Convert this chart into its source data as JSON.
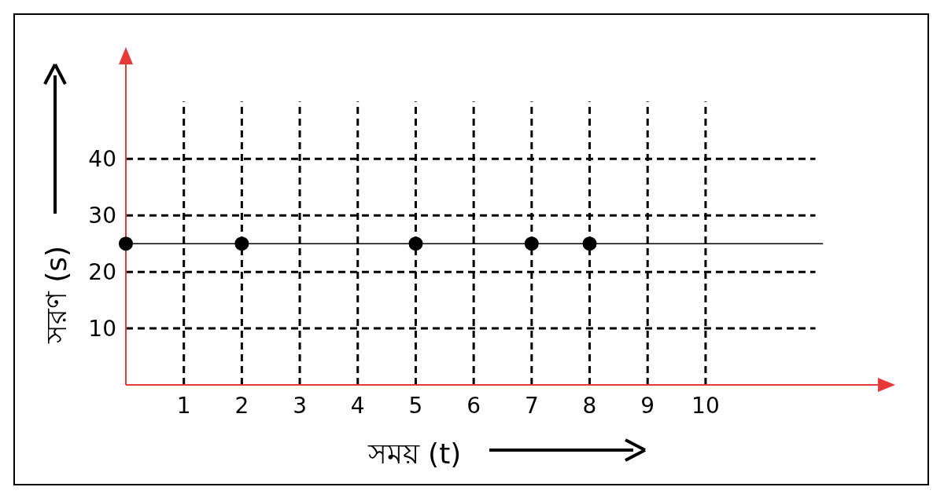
{
  "chart_data": {
    "type": "scatter",
    "xlabel": "সময় (t)",
    "ylabel": "সরণ (s)",
    "x": [
      0,
      2,
      5,
      7,
      8
    ],
    "series": [
      {
        "color": "#000000",
        "values": [
          25,
          25,
          25,
          25,
          25
        ]
      }
    ],
    "marker": "circle",
    "xlim": [
      0,
      13
    ],
    "ylim": [
      0,
      57
    ],
    "xticks": [
      1,
      2,
      3,
      4,
      5,
      6,
      7,
      8,
      9,
      10
    ],
    "yticks": [
      10,
      20,
      30,
      40
    ],
    "grid": true,
    "ref_lines": [
      {
        "axis": "y",
        "value": 25,
        "color": "#000000"
      }
    ]
  }
}
